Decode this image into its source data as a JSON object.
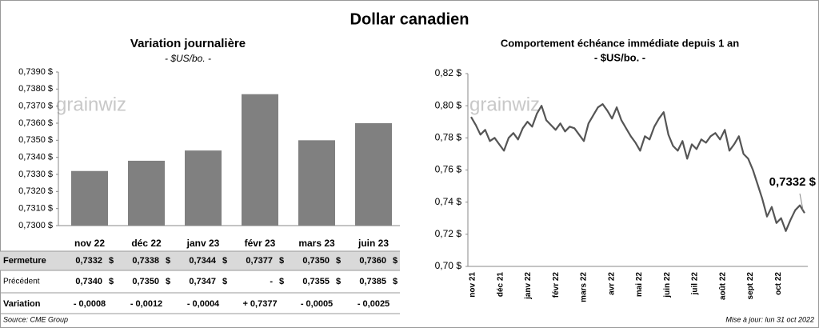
{
  "title": "Dollar canadien",
  "source": "Source: CME Group",
  "updated": "Mise à jour: lun 31 oct 2022",
  "watermark": "grainwiz",
  "chart_data": [
    {
      "type": "bar",
      "title": "Variation  journalière",
      "subtitle": "- $US/bo. -",
      "categories": [
        "nov 22",
        "déc 22",
        "janv 23",
        "févr 23",
        "mars 23",
        "juin 23"
      ],
      "values": [
        0.7332,
        0.7338,
        0.7344,
        0.7377,
        0.735,
        0.736
      ],
      "value_labels": [
        "0,7332",
        "0,7338",
        "0,7344",
        "0,7377",
        "0,7350",
        "0,7360"
      ],
      "color": "#808080",
      "ylim": [
        0.73,
        0.739
      ],
      "yticks": [
        {
          "value": 0.73,
          "label": "0,7300 $"
        },
        {
          "value": 0.731,
          "label": "0,7310 $"
        },
        {
          "value": 0.732,
          "label": "0,7320 $"
        },
        {
          "value": 0.733,
          "label": "0,7330 $"
        },
        {
          "value": 0.734,
          "label": "0,7340 $"
        },
        {
          "value": 0.735,
          "label": "0,7350 $"
        },
        {
          "value": 0.736,
          "label": "0,7360 $"
        },
        {
          "value": 0.737,
          "label": "0,7370 $"
        },
        {
          "value": 0.738,
          "label": "0,7380 $"
        },
        {
          "value": 0.739,
          "label": "0,7390 $"
        }
      ],
      "grid": false
    },
    {
      "type": "line",
      "title": "Comportement échéance immédiate depuis 1 an",
      "subtitle": "- $US/bo. -",
      "x_labels": [
        "nov 21",
        "déc 21",
        "janv 22",
        "févr 22",
        "mars 22",
        "avr 22",
        "mai 22",
        "juin 22",
        "juil 22",
        "août 22",
        "sept 22",
        "oct 22"
      ],
      "values": [
        0.793,
        0.788,
        0.782,
        0.785,
        0.778,
        0.78,
        0.776,
        0.772,
        0.78,
        0.783,
        0.779,
        0.786,
        0.79,
        0.787,
        0.795,
        0.8,
        0.791,
        0.788,
        0.785,
        0.789,
        0.784,
        0.787,
        0.786,
        0.782,
        0.778,
        0.789,
        0.794,
        0.799,
        0.801,
        0.797,
        0.792,
        0.799,
        0.791,
        0.786,
        0.781,
        0.777,
        0.772,
        0.781,
        0.779,
        0.787,
        0.792,
        0.796,
        0.782,
        0.775,
        0.772,
        0.778,
        0.767,
        0.776,
        0.773,
        0.779,
        0.777,
        0.781,
        0.783,
        0.779,
        0.785,
        0.772,
        0.776,
        0.781,
        0.77,
        0.767,
        0.76,
        0.751,
        0.742,
        0.731,
        0.737,
        0.727,
        0.73,
        0.722,
        0.729,
        0.735,
        0.738,
        0.7332
      ],
      "color": "#555555",
      "annotation": "0,7332 $",
      "ylim": [
        0.7,
        0.82
      ],
      "yticks": [
        {
          "value": 0.7,
          "label": "0,70 $"
        },
        {
          "value": 0.72,
          "label": "0,72 $"
        },
        {
          "value": 0.74,
          "label": "0,74 $"
        },
        {
          "value": 0.76,
          "label": "0,76 $"
        },
        {
          "value": 0.78,
          "label": "0,78 $"
        },
        {
          "value": 0.8,
          "label": "0,80 $"
        },
        {
          "value": 0.82,
          "label": "0,82 $"
        }
      ],
      "grid": false
    }
  ],
  "table": {
    "unit": "$",
    "row_labels": [
      "Fermeture",
      "Précédent",
      "Variation"
    ],
    "previous": [
      "0,7340",
      "0,7350",
      "0,7347",
      "-",
      "0,7355",
      "0,7385"
    ],
    "variation": [
      "- 0,0008",
      "- 0,0012",
      "- 0,0004",
      "+ 0,7377",
      "- 0,0005",
      "- 0,0025"
    ],
    "negative_color": "#e00000",
    "positive_color": "#1a8a1a"
  }
}
